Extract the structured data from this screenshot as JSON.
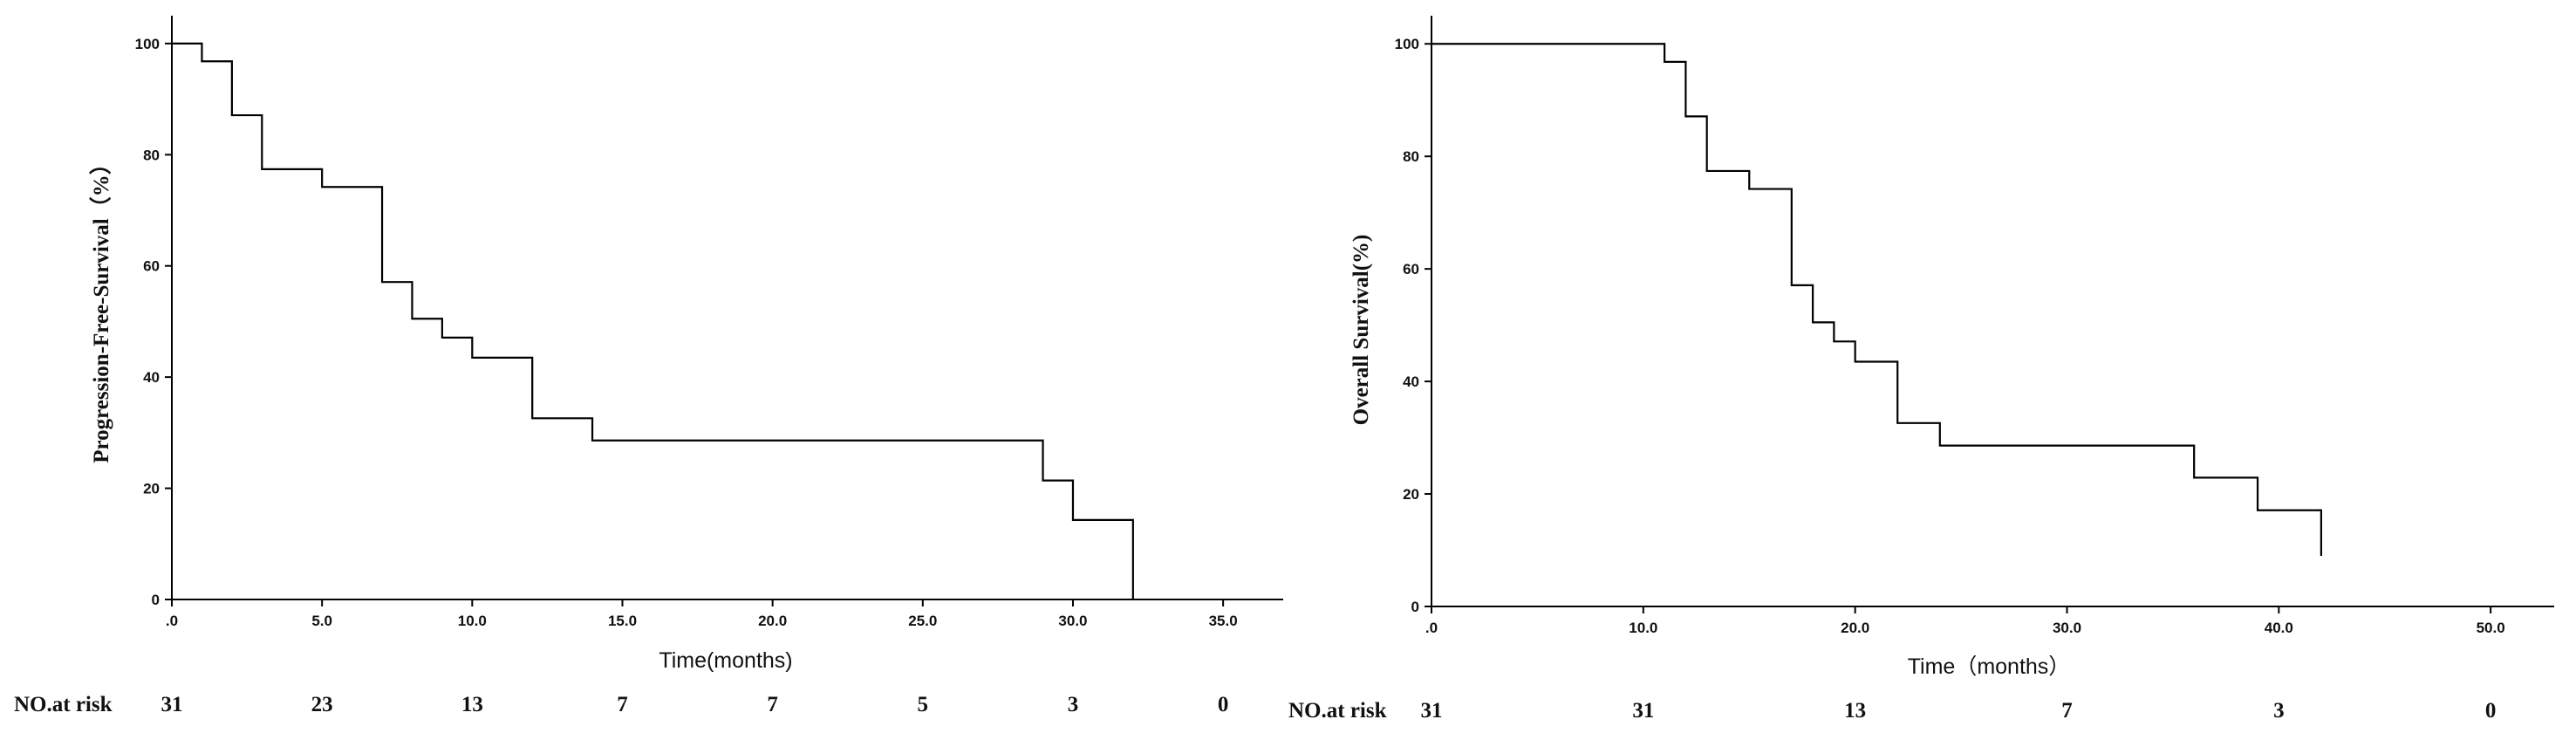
{
  "chart_data": [
    {
      "type": "line",
      "step": true,
      "xlabel": "Time(months)",
      "ylabel": "Progression-Free-Survival（%）",
      "xlim": [
        0,
        37
      ],
      "ylim": [
        0,
        105
      ],
      "x_ticks": [
        0,
        5,
        10,
        15,
        20,
        25,
        30,
        35
      ],
      "x_tick_labels": [
        ".0",
        "5.0",
        "10.0",
        "15.0",
        "20.0",
        "25.0",
        "30.0",
        "35.0"
      ],
      "y_ticks": [
        0,
        20,
        40,
        60,
        80,
        100
      ],
      "y_tick_labels": [
        "0",
        "20",
        "40",
        "60",
        "80",
        "100"
      ],
      "grid": false,
      "series": [
        {
          "x": [
            0,
            1,
            2,
            3,
            5,
            7,
            8,
            9,
            10,
            12,
            14,
            29,
            30,
            32,
            32
          ],
          "y": [
            100,
            96.8,
            87.1,
            77.4,
            74.2,
            57.1,
            50.5,
            47.1,
            43.5,
            32.6,
            28.6,
            21.4,
            14.3,
            14.3,
            0
          ]
        }
      ],
      "risk_table": {
        "label": "NO.at risk",
        "x": [
          0,
          5,
          10,
          15,
          20,
          25,
          30,
          35
        ],
        "values": [
          "31",
          "23",
          "13",
          "7",
          "7",
          "5",
          "3",
          "0"
        ]
      }
    },
    {
      "type": "line",
      "step": true,
      "xlabel": "Time（months）",
      "ylabel": "Overall Survival(%)",
      "xlim": [
        0,
        53
      ],
      "ylim": [
        0,
        105
      ],
      "x_ticks": [
        0,
        10,
        20,
        30,
        40,
        50
      ],
      "x_tick_labels": [
        ".0",
        "10.0",
        "20.0",
        "30.0",
        "40.0",
        "50.0"
      ],
      "y_ticks": [
        0,
        20,
        40,
        60,
        80,
        100
      ],
      "y_tick_labels": [
        "0",
        "20",
        "40",
        "60",
        "80",
        "100"
      ],
      "grid": false,
      "series": [
        {
          "x": [
            0,
            11,
            12,
            13,
            15,
            17,
            18,
            19,
            20,
            22,
            24,
            36,
            39,
            42,
            42
          ],
          "y": [
            100,
            96.8,
            87.1,
            77.4,
            74.2,
            57.1,
            50.5,
            47.1,
            43.5,
            32.6,
            28.6,
            22.9,
            17.1,
            17.1,
            9
          ]
        }
      ],
      "risk_table": {
        "label": "NO.at risk",
        "x": [
          0,
          10,
          20,
          30,
          40,
          50
        ],
        "values": [
          "31",
          "31",
          "13",
          "7",
          "3",
          "0"
        ]
      }
    }
  ]
}
